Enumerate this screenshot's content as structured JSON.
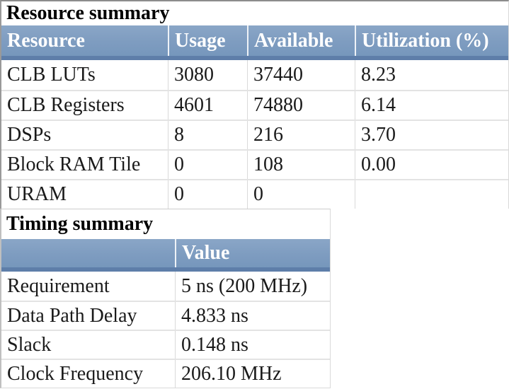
{
  "resource_table": {
    "title": "Resource summary",
    "columns": [
      "Resource",
      "Usage",
      "Available",
      "Utilization (%)"
    ],
    "rows": [
      {
        "resource": "CLB LUTs",
        "usage": "3080",
        "available": "37440",
        "utilization": "8.23"
      },
      {
        "resource": "CLB Registers",
        "usage": "4601",
        "available": "74880",
        "utilization": "6.14"
      },
      {
        "resource": "DSPs",
        "usage": "8",
        "available": "216",
        "utilization": "3.70"
      },
      {
        "resource": "Block RAM Tile",
        "usage": "0",
        "available": "108",
        "utilization": "0.00"
      },
      {
        "resource": "URAM",
        "usage": "0",
        "available": "0",
        "utilization": ""
      }
    ]
  },
  "timing_table": {
    "title": "Timing summary",
    "columns": [
      "",
      "Value"
    ],
    "rows": [
      {
        "name": "Requirement",
        "value": "5 ns (200 MHz)"
      },
      {
        "name": "Data Path Delay",
        "value": "4.833 ns"
      },
      {
        "name": "Slack",
        "value": "0.148 ns"
      },
      {
        "name": "Clock Frequency",
        "value": "206.10 MHz"
      }
    ]
  },
  "colors": {
    "header_background": "#7e9cc0",
    "header_border_bottom": "#5e7ea9",
    "header_text": "#ffffff",
    "row_divider": "#d9d9d9",
    "body_text": "#1a1a1a"
  }
}
